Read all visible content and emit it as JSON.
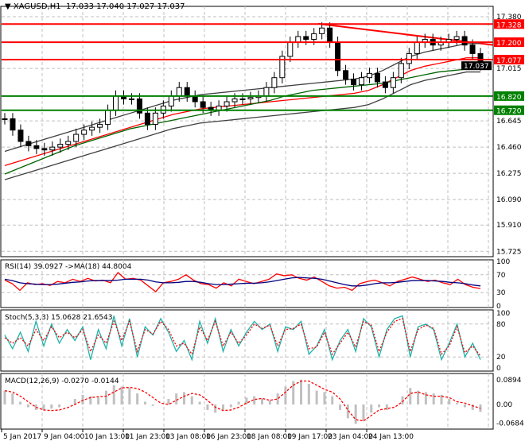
{
  "header": {
    "symbol": "XAGUSD,H1",
    "ohlc": "17.033 17.040 17.027 17.037"
  },
  "chart_data": [
    {
      "type": "candlestick",
      "name": "XAGUSD,H1",
      "yticks": [
        17.38,
        17.015,
        16.645,
        16.46,
        16.275,
        16.09,
        15.91,
        15.725
      ],
      "ylim": [
        15.725,
        17.38
      ],
      "close": [
        16.66,
        16.58,
        16.5,
        16.47,
        16.45,
        16.44,
        16.46,
        16.48,
        16.5,
        16.55,
        16.58,
        16.6,
        16.62,
        16.72,
        16.82,
        16.8,
        16.8,
        16.7,
        16.62,
        16.7,
        16.75,
        16.82,
        16.88,
        16.82,
        16.78,
        16.74,
        16.72,
        16.75,
        16.78,
        16.8,
        16.8,
        16.81,
        16.82,
        16.88,
        16.95,
        17.1,
        17.2,
        17.24,
        17.22,
        17.26,
        17.3,
        17.2,
        17.0,
        16.94,
        16.9,
        16.95,
        16.98,
        16.92,
        16.88,
        16.95,
        17.05,
        17.12,
        17.2,
        17.22,
        17.18,
        17.2,
        17.22,
        17.24,
        17.18,
        17.12,
        17.04
      ],
      "ma_red": [
        16.33,
        16.36,
        16.39,
        16.42,
        16.45,
        16.48,
        16.51,
        16.54,
        16.57,
        16.6,
        16.63,
        16.66,
        16.69,
        16.71,
        16.73,
        16.74,
        16.75,
        16.76,
        16.77,
        16.78,
        16.79,
        16.8,
        16.81,
        16.82,
        16.83,
        16.84,
        16.86,
        16.9,
        16.95,
        17.0,
        17.03,
        17.05,
        17.07,
        17.09,
        17.09
      ],
      "ma_green": [
        16.27,
        16.31,
        16.35,
        16.39,
        16.43,
        16.47,
        16.5,
        16.53,
        16.56,
        16.59,
        16.61,
        16.63,
        16.65,
        16.67,
        16.69,
        16.71,
        16.73,
        16.75,
        16.77,
        16.79,
        16.82,
        16.84,
        16.86,
        16.87,
        16.88,
        16.89,
        16.9,
        16.91,
        16.93,
        16.95,
        16.97,
        16.99,
        17.0,
        17.01,
        17.02
      ],
      "levels": [
        {
          "value": 17.328,
          "label": "17.328",
          "color": "#ff0000"
        },
        {
          "value": 17.2,
          "label": "17.200",
          "color": "#ff0000"
        },
        {
          "value": 17.077,
          "label": "17.077",
          "color": "#ff0000"
        },
        {
          "value": 16.82,
          "label": "16.820",
          "color": "#008000"
        },
        {
          "value": 16.72,
          "label": "16.720",
          "color": "#008000"
        }
      ],
      "current_price": "17.037",
      "trendline": [
        17.33,
        17.18
      ]
    },
    {
      "type": "line",
      "name": "RSI(14)",
      "label": "RSI(14) 39.0927  ->MA(18) 44.8004",
      "yticks": [
        "100",
        "70",
        "30",
        "0"
      ],
      "ylim": [
        0,
        100
      ],
      "rsi": [
        58,
        50,
        35,
        52,
        48,
        50,
        46,
        55,
        52,
        60,
        55,
        62,
        56,
        58,
        52,
        75,
        60,
        62,
        58,
        45,
        32,
        52,
        55,
        60,
        70,
        58,
        50,
        48,
        40,
        52,
        45,
        60,
        55,
        50,
        55,
        60,
        72,
        68,
        70,
        62,
        58,
        65,
        55,
        45,
        40,
        42,
        35,
        50,
        55,
        58,
        52,
        45,
        55,
        60,
        65,
        60,
        55,
        58,
        52,
        48,
        60,
        48,
        42,
        39
      ],
      "ma": [
        60,
        57,
        52,
        50,
        49,
        48,
        48,
        49,
        51,
        53,
        54,
        56,
        57,
        57,
        57,
        58,
        60,
        60,
        60,
        58,
        54,
        52,
        52,
        53,
        55,
        55,
        53,
        50,
        48,
        48,
        49,
        50,
        51,
        51,
        52,
        54,
        57,
        60,
        63,
        64,
        63,
        62,
        60,
        56,
        52,
        48,
        45,
        45,
        47,
        50,
        52,
        52,
        53,
        55,
        57,
        57,
        57,
        56,
        55,
        53,
        52,
        50,
        47,
        45
      ]
    },
    {
      "type": "line",
      "name": "Stoch(5,3,3)",
      "label": "Stoch(5,3,3) 15.0628 21.6543",
      "yticks": [
        "100",
        "80",
        "20",
        "0"
      ],
      "ylim": [
        0,
        100
      ],
      "main": [
        60,
        35,
        65,
        30,
        85,
        40,
        80,
        45,
        70,
        50,
        75,
        15,
        70,
        35,
        95,
        40,
        90,
        20,
        75,
        60,
        90,
        65,
        30,
        50,
        15,
        85,
        45,
        90,
        30,
        70,
        40,
        65,
        85,
        70,
        80,
        30,
        75,
        70,
        85,
        25,
        40,
        70,
        15,
        50,
        70,
        30,
        90,
        75,
        20,
        70,
        90,
        95,
        20,
        75,
        80,
        70,
        15,
        45,
        80,
        20,
        45,
        15
      ],
      "signal": [
        55,
        45,
        55,
        40,
        70,
        50,
        75,
        55,
        65,
        55,
        70,
        30,
        60,
        45,
        85,
        50,
        85,
        30,
        70,
        62,
        85,
        70,
        40,
        45,
        25,
        75,
        50,
        85,
        40,
        65,
        45,
        60,
        80,
        72,
        78,
        40,
        70,
        72,
        80,
        35,
        38,
        65,
        25,
        45,
        65,
        38,
        85,
        78,
        30,
        65,
        85,
        90,
        30,
        70,
        78,
        72,
        25,
        40,
        75,
        28,
        40,
        22
      ]
    },
    {
      "type": "bar+line",
      "name": "MACD(12,26,9)",
      "label": "MACD(12,26,9) -0.0270 -0.0144",
      "yticks": [
        "0.0894",
        "0.00",
        "-0.0684"
      ],
      "ylim": [
        -0.075,
        0.095
      ],
      "hist": [
        0.05,
        0.04,
        0.01,
        -0.01,
        -0.02,
        -0.02,
        -0.015,
        -0.01,
        0.0,
        0.02,
        0.035,
        0.03,
        0.025,
        0.05,
        0.07,
        0.065,
        0.06,
        0.04,
        0.01,
        -0.005,
        0.0,
        0.02,
        0.04,
        0.045,
        0.03,
        0.01,
        -0.02,
        -0.03,
        -0.02,
        -0.01,
        0.01,
        0.025,
        0.03,
        0.02,
        0.015,
        0.04,
        0.065,
        0.085,
        0.09,
        0.075,
        0.05,
        0.045,
        0.03,
        -0.02,
        -0.05,
        -0.07,
        -0.06,
        -0.03,
        -0.01,
        -0.02,
        0.0,
        0.03,
        0.06,
        0.05,
        0.045,
        0.04,
        0.035,
        0.02,
        0.005,
        -0.01,
        -0.02,
        -0.027
      ],
      "signal": [
        0.05,
        0.045,
        0.03,
        0.01,
        -0.01,
        -0.02,
        -0.022,
        -0.02,
        -0.012,
        0.0,
        0.015,
        0.025,
        0.028,
        0.03,
        0.045,
        0.06,
        0.062,
        0.058,
        0.045,
        0.025,
        0.005,
        0.0,
        0.015,
        0.03,
        0.04,
        0.035,
        0.015,
        -0.01,
        -0.022,
        -0.02,
        -0.01,
        0.005,
        0.018,
        0.022,
        0.015,
        0.02,
        0.045,
        0.07,
        0.085,
        0.085,
        0.07,
        0.055,
        0.045,
        0.02,
        -0.02,
        -0.055,
        -0.06,
        -0.04,
        -0.02,
        -0.015,
        -0.01,
        0.01,
        0.04,
        0.045,
        0.035,
        0.03,
        0.03,
        0.025,
        0.01,
        0.005,
        -0.005,
        -0.014
      ]
    }
  ],
  "time_axis": [
    "5 Jan 2017",
    "9 Jan 04:00",
    "10 Jan 13:00",
    "11 Jan 23:00",
    "13 Jan 08:00",
    "16 Jan 23:00",
    "18 Jan 08:00",
    "19 Jan 17:00",
    "23 Jan 04:00",
    "24 Jan 13:00"
  ],
  "colors": {
    "bull": "#000000",
    "bear": "#000000",
    "ma_red": "#ff0000",
    "ma_green": "#006400",
    "rsi": "#ff0000",
    "rsi_ma": "#000080",
    "stoch_main": "#20b2aa",
    "stoch_signal": "#ff0000",
    "macd_hist": "#c0c0c0",
    "macd_signal": "#ff0000"
  }
}
